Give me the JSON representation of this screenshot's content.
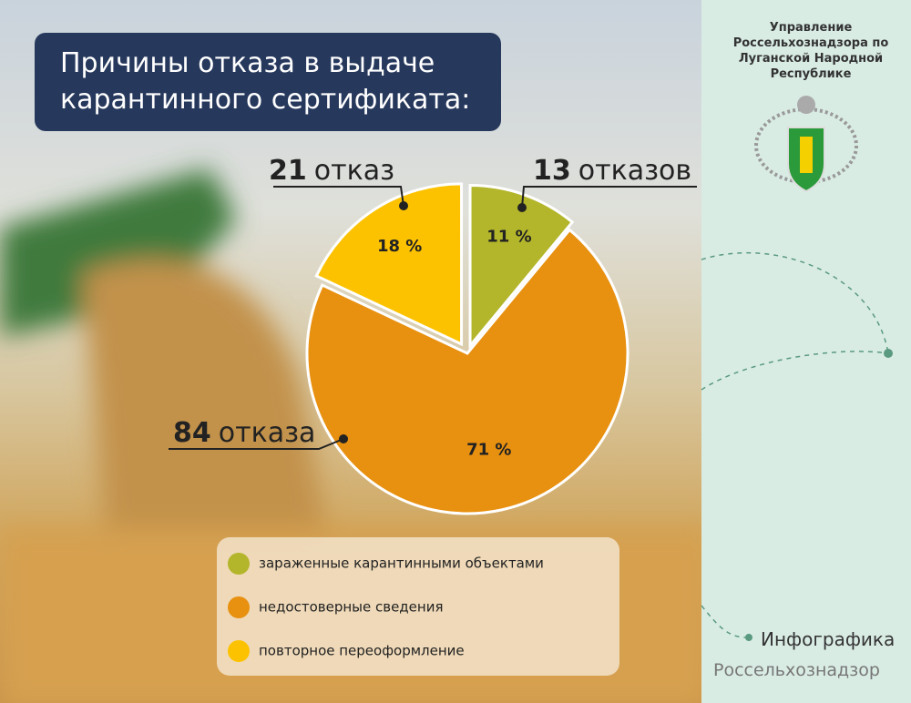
{
  "chart_data": {
    "type": "pie",
    "title": "Причины отказа в выдаче карантинного сертификата:",
    "categories": [
      "зараженные карантинными объектами",
      "недостоверные сведения",
      "повторное переоформление"
    ],
    "values": [
      11,
      71,
      18
    ],
    "value_labels": [
      "11 %",
      "71 %",
      "18 %"
    ],
    "colors": [
      "#b3b52a",
      "#e8900f",
      "#fcc200"
    ],
    "counts": [
      13,
      84,
      21
    ],
    "count_units": [
      "отказов",
      "отказа",
      "отказ"
    ]
  },
  "org": "Управление Россельхознадзора по Луганской Народной Республике",
  "footer": {
    "label": "Инфографика",
    "source": "Россельхознадзор"
  }
}
